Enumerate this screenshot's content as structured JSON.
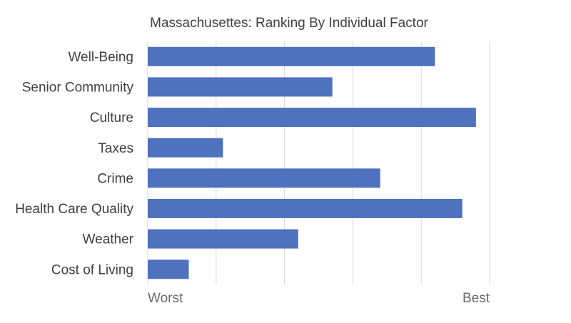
{
  "chart_data": {
    "type": "bar",
    "orientation": "horizontal",
    "title": "Massachusettes: Ranking By Individual Factor",
    "xlabel": "",
    "ylabel": "",
    "categories": [
      "Well-Being",
      "Senior Community",
      "Culture",
      "Taxes",
      "Crime",
      "Health Care Quality",
      "Weather",
      "Cost of Living"
    ],
    "values": [
      4.2,
      2.7,
      4.8,
      1.1,
      3.4,
      4.6,
      2.2,
      0.6
    ],
    "xlim": [
      0,
      5
    ],
    "x_tick_labels": {
      "min": "Worst",
      "max": "Best"
    },
    "gridlines": true,
    "legend": "none",
    "bar_color": "#4f72bf",
    "grid_color": "#d9d9d9",
    "text_color": "#404040"
  }
}
